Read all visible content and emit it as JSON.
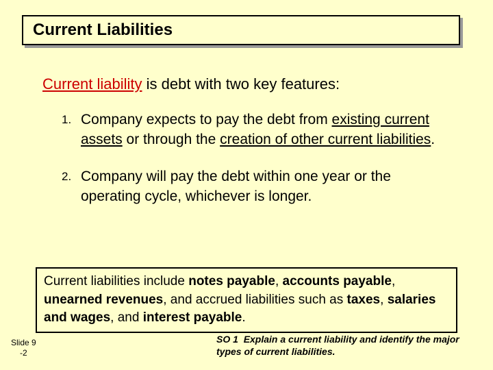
{
  "title": "Current Liabilities",
  "intro": {
    "term": "Current liability",
    "rest": " is debt with two key features:"
  },
  "items": [
    {
      "num": "1.",
      "pre": "Company expects to pay the debt from ",
      "u1": "existing current assets",
      "mid": " or through the ",
      "u2": "creation of other current liabilities",
      "post": "."
    },
    {
      "num": "2.",
      "text": "Company will pay the debt within one year or the operating cycle, whichever is longer."
    }
  ],
  "callout": {
    "lead": "Current liabilities include ",
    "b1": "notes payable",
    "s1": ", ",
    "b2": "accounts payable",
    "s2": ", ",
    "b3": "unearned revenues",
    "s3": ", and accrued liabilities such as ",
    "b4": "taxes",
    "s4": ", ",
    "b5": "salaries and wages",
    "s5": ", and ",
    "b6": "interest payable",
    "s6": "."
  },
  "footer": {
    "left1": "Slide 9",
    "left2": "-2",
    "so_label": "SO 1",
    "so_text": "Explain a current liability and identify the major types of current liabilities."
  },
  "colors": {
    "background": "#ffffcc",
    "term": "#cc0000",
    "border": "#000000",
    "shadow": "#999999"
  }
}
